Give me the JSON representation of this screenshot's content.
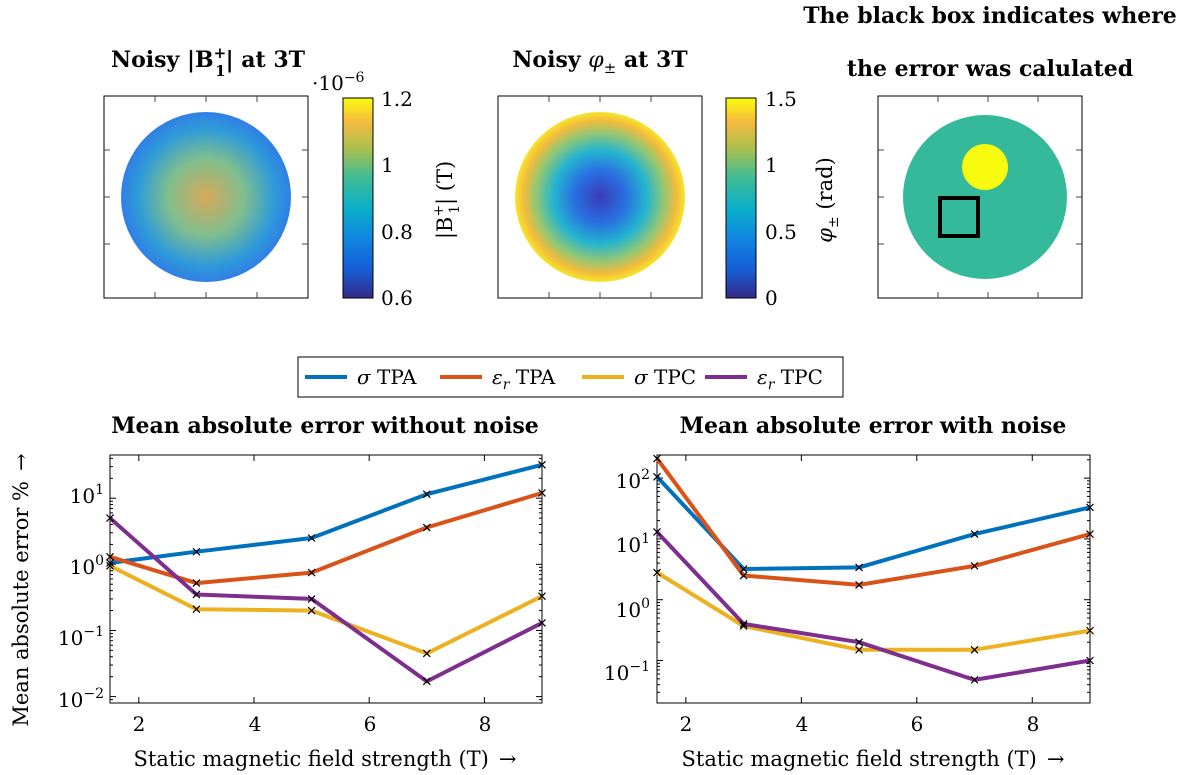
{
  "top_row": {
    "magnitude_map": {
      "title": "Noisy |B",
      "title_sup": "+",
      "title_sub": "1",
      "title_tail": "| at 3T",
      "colorbar_exponent": "·10",
      "colorbar_exponent_power": "−6",
      "colorbar_ticks": [
        "1.2",
        "1",
        "0.8",
        "0.6"
      ],
      "colorbar_label": "|B",
      "colorbar_label_sup": "+",
      "colorbar_label_sub": "1",
      "colorbar_label_tail": "| (T)"
    },
    "phase_map": {
      "title_pre": "Noisy ",
      "title_symbol": "φ",
      "title_sub": "±",
      "title_tail": " at 3T",
      "colorbar_ticks": [
        "1.5",
        "1",
        "0.5",
        "0"
      ],
      "colorbar_label_symbol": "φ",
      "colorbar_label_sub": "±",
      "colorbar_label_tail": " (rad)"
    },
    "mask_map": {
      "title_line1": "The black box indicates where",
      "title_line2": "the error was calulated"
    },
    "colors": {
      "mask_background": "#34b99a",
      "mask_inclusion": "#f9fb0e",
      "error_box": "#000000"
    }
  },
  "legend": {
    "entries": [
      {
        "symbol": "σ",
        "sub": "",
        "text": " TPA",
        "color": "#0072bd"
      },
      {
        "symbol": "ε",
        "sub": "r",
        "text": " TPA",
        "color": "#d95319"
      },
      {
        "symbol": "σ",
        "sub": "",
        "text": " TPC",
        "color": "#edb120"
      },
      {
        "symbol": "ε",
        "sub": "r",
        "text": " TPC",
        "color": "#7e2f8e"
      }
    ]
  },
  "chart_data": [
    {
      "type": "line",
      "title": "Mean absolute error without noise",
      "xlabel": "Static magnetic field strength (T)",
      "ylabel": "Mean absolute error %",
      "arrow": "→",
      "x": [
        1.5,
        3,
        5,
        7,
        9
      ],
      "xlim": [
        1.5,
        9
      ],
      "ylim": [
        0.008,
        45
      ],
      "yscale": "log",
      "xticks": [
        "2",
        "4",
        "6",
        "8"
      ],
      "yticks": [
        {
          "base": "10",
          "exp": "1"
        },
        {
          "base": "10",
          "exp": "0"
        },
        {
          "base": "10",
          "exp": "−1"
        },
        {
          "base": "10",
          "exp": "−2"
        }
      ],
      "marker": "x",
      "series": [
        {
          "name": "σ TPA",
          "values": [
            1.05,
            1.55,
            2.5,
            11.5,
            32
          ]
        },
        {
          "name": "εr TPA",
          "values": [
            1.3,
            0.52,
            0.75,
            3.6,
            12
          ]
        },
        {
          "name": "σ TPC",
          "values": [
            0.95,
            0.21,
            0.2,
            0.045,
            0.33
          ]
        },
        {
          "name": "εr TPC",
          "values": [
            5.0,
            0.35,
            0.3,
            0.017,
            0.13
          ]
        }
      ]
    },
    {
      "type": "line",
      "title": "Mean absolute error with noise",
      "xlabel": "Static magnetic field strength (T)",
      "ylabel": "",
      "arrow": "→",
      "x": [
        1.5,
        3,
        5,
        7,
        9
      ],
      "xlim": [
        1.5,
        9
      ],
      "ylim": [
        0.02,
        240
      ],
      "yscale": "log",
      "xticks": [
        "2",
        "4",
        "6",
        "8"
      ],
      "yticks": [
        {
          "base": "10",
          "exp": "2"
        },
        {
          "base": "10",
          "exp": "1"
        },
        {
          "base": "10",
          "exp": "0"
        },
        {
          "base": "10",
          "exp": "−1"
        }
      ],
      "marker": "x",
      "series": [
        {
          "name": "σ TPA",
          "values": [
            105,
            3.2,
            3.4,
            12,
            33
          ]
        },
        {
          "name": "εr TPA",
          "values": [
            210,
            2.5,
            1.75,
            3.6,
            12
          ]
        },
        {
          "name": "σ TPC",
          "values": [
            2.8,
            0.37,
            0.15,
            0.15,
            0.31
          ]
        },
        {
          "name": "εr TPC",
          "values": [
            13,
            0.4,
            0.2,
            0.048,
            0.1
          ]
        }
      ]
    }
  ]
}
